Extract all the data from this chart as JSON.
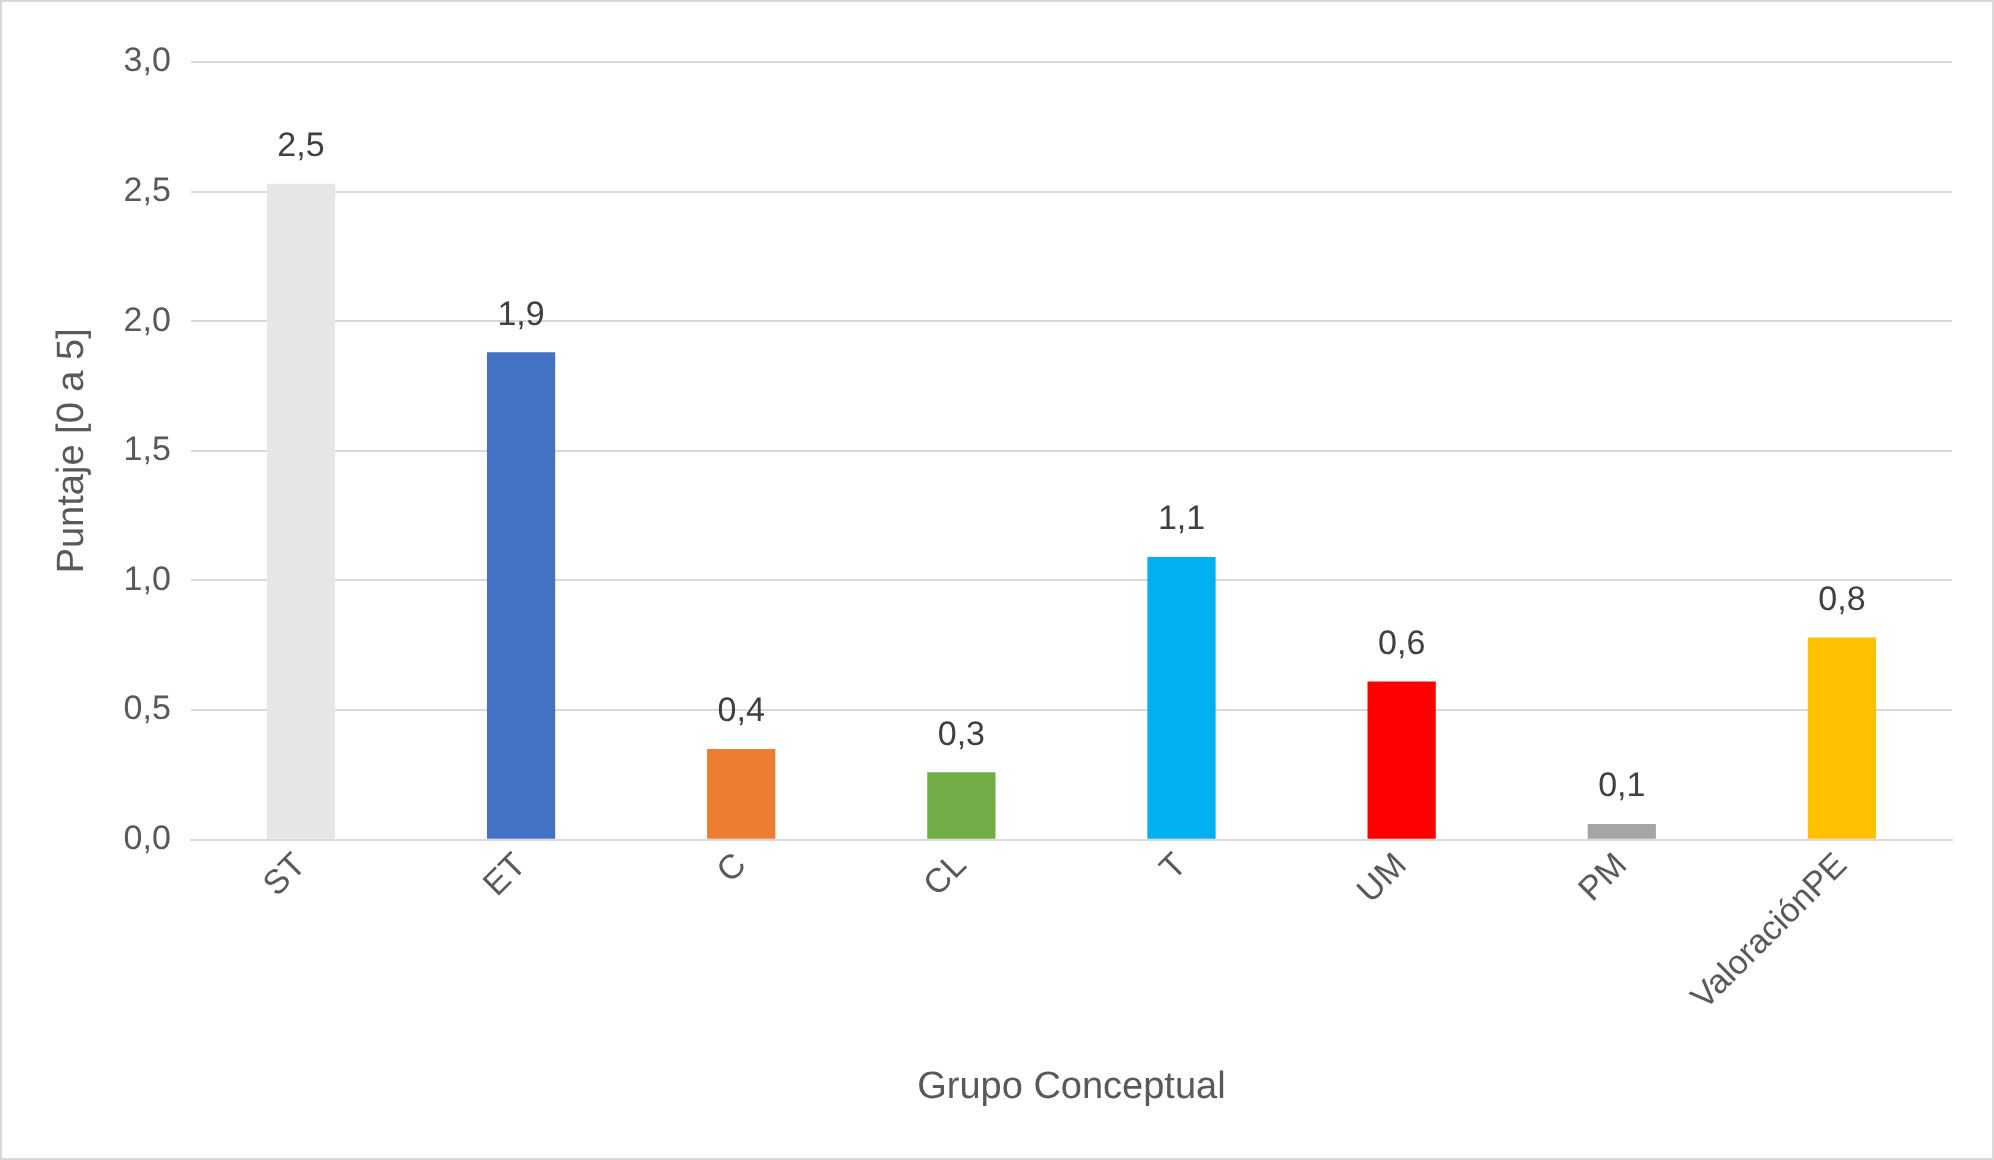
{
  "chart_data": {
    "type": "bar",
    "xlabel": "Grupo Conceptual",
    "ylabel": "Puntaje [0 a 5]",
    "categories": [
      "ST",
      "ET",
      "C",
      "CL",
      "T",
      "UM",
      "PM",
      "ValoraciónPE"
    ],
    "values": [
      2.53,
      1.88,
      0.35,
      0.26,
      1.09,
      0.61,
      0.06,
      0.78
    ],
    "value_labels": [
      "2,5",
      "1,9",
      "0,4",
      "0,3",
      "1,1",
      "0,6",
      "0,1",
      "0,8"
    ],
    "colors": [
      "#e7e6e6",
      "#4472c4",
      "#ed7d31",
      "#70ad47",
      "#00b0f0",
      "#ff0000",
      "#a5a5a5",
      "#ffc000"
    ],
    "ylim": [
      0,
      3
    ],
    "yticks": [
      {
        "value": 0,
        "label": "0,0"
      },
      {
        "value": 0.5,
        "label": "0,5"
      },
      {
        "value": 1,
        "label": "1,0"
      },
      {
        "value": 1.5,
        "label": "1,5"
      },
      {
        "value": 2,
        "label": "2,0"
      },
      {
        "value": 2.5,
        "label": "2,5"
      },
      {
        "value": 3,
        "label": "3,0"
      }
    ],
    "grid": "y",
    "legend": false
  }
}
